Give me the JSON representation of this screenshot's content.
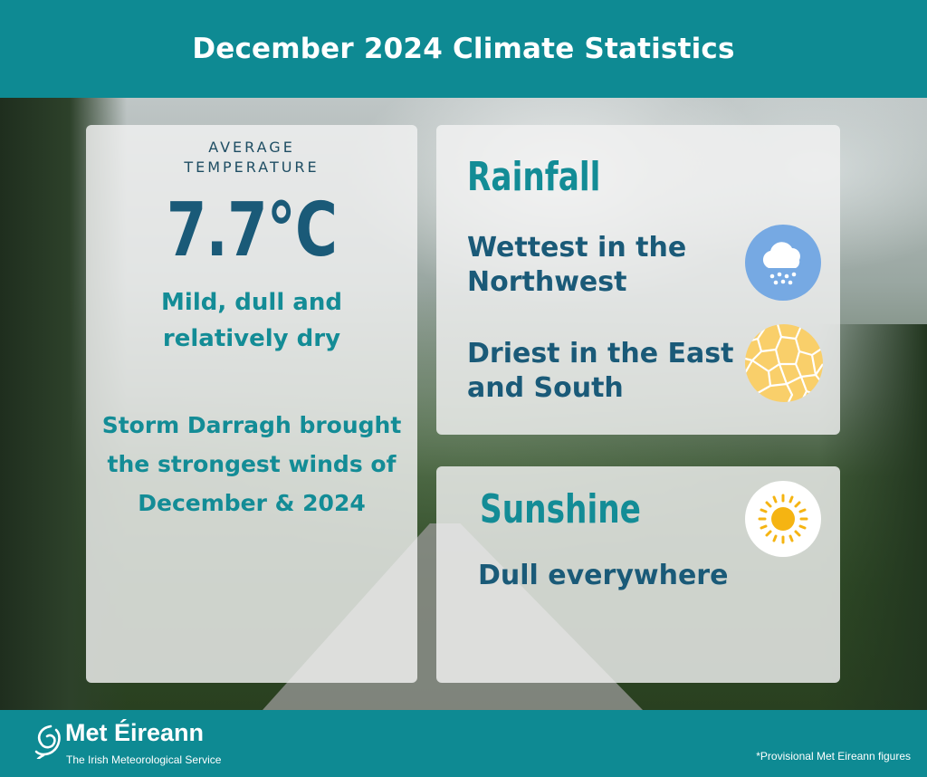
{
  "header": {
    "title": "December 2024 Climate Statistics"
  },
  "temperature_card": {
    "label": "AVERAGE TEMPERATURE",
    "value": "7.7°C",
    "summary": "Mild, dull and relatively dry",
    "storm_note": "Storm Darragh brought the strongest winds of December & 2024"
  },
  "rainfall_card": {
    "title": "Rainfall",
    "wettest": "Wettest in the Northwest",
    "driest": "Driest in the East and South",
    "wettest_icon": "rain-cloud-icon",
    "driest_icon": "cracked-dry-ground-icon"
  },
  "sunshine_card": {
    "title": "Sunshine",
    "summary": "Dull everywhere",
    "icon": "sun-icon"
  },
  "footer": {
    "brand_name": "Met Éireann",
    "tagline": "The Irish Meteorological Service",
    "footnote": "*Provisional Met Eireann figures"
  },
  "colors": {
    "teal": "#0e8a93",
    "navy_text": "#1a5a78",
    "teal_text": "#138c96",
    "rain_icon_bg": "#76a9e3",
    "dry_icon_bg": "#f9cf6a",
    "sun_color": "#f5b412"
  }
}
